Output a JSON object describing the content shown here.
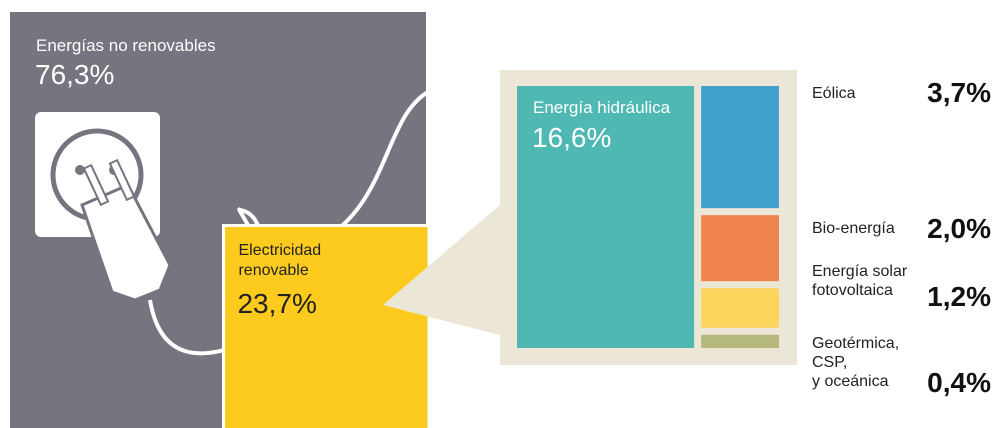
{
  "chart_data": {
    "type": "treemap",
    "categories": [
      "Energías no renovables",
      "Electricidad\nrenovable"
    ],
    "values": [
      76.3,
      23.7
    ],
    "value_labels": [
      "76,3%",
      "23,7%"
    ],
    "colors": [
      "#77737f",
      "#fdcb1e"
    ],
    "breakdown": {
      "categories": [
        "Energía hidráulica",
        "Eólica",
        "Bio-energía",
        "Energía solar\nfotovoltaica",
        "Geotérmica,\nCSP,\ny oceánica"
      ],
      "values": [
        16.6,
        3.7,
        2.0,
        1.2,
        0.4
      ],
      "value_labels": [
        "16,6%",
        "3,7%",
        "2,0%",
        "1,2%",
        "0,4%"
      ],
      "colors": [
        "#4fb8b3",
        "#42a0cf",
        "#ef844d",
        "#fdd55c",
        "#b5b97b"
      ]
    }
  }
}
